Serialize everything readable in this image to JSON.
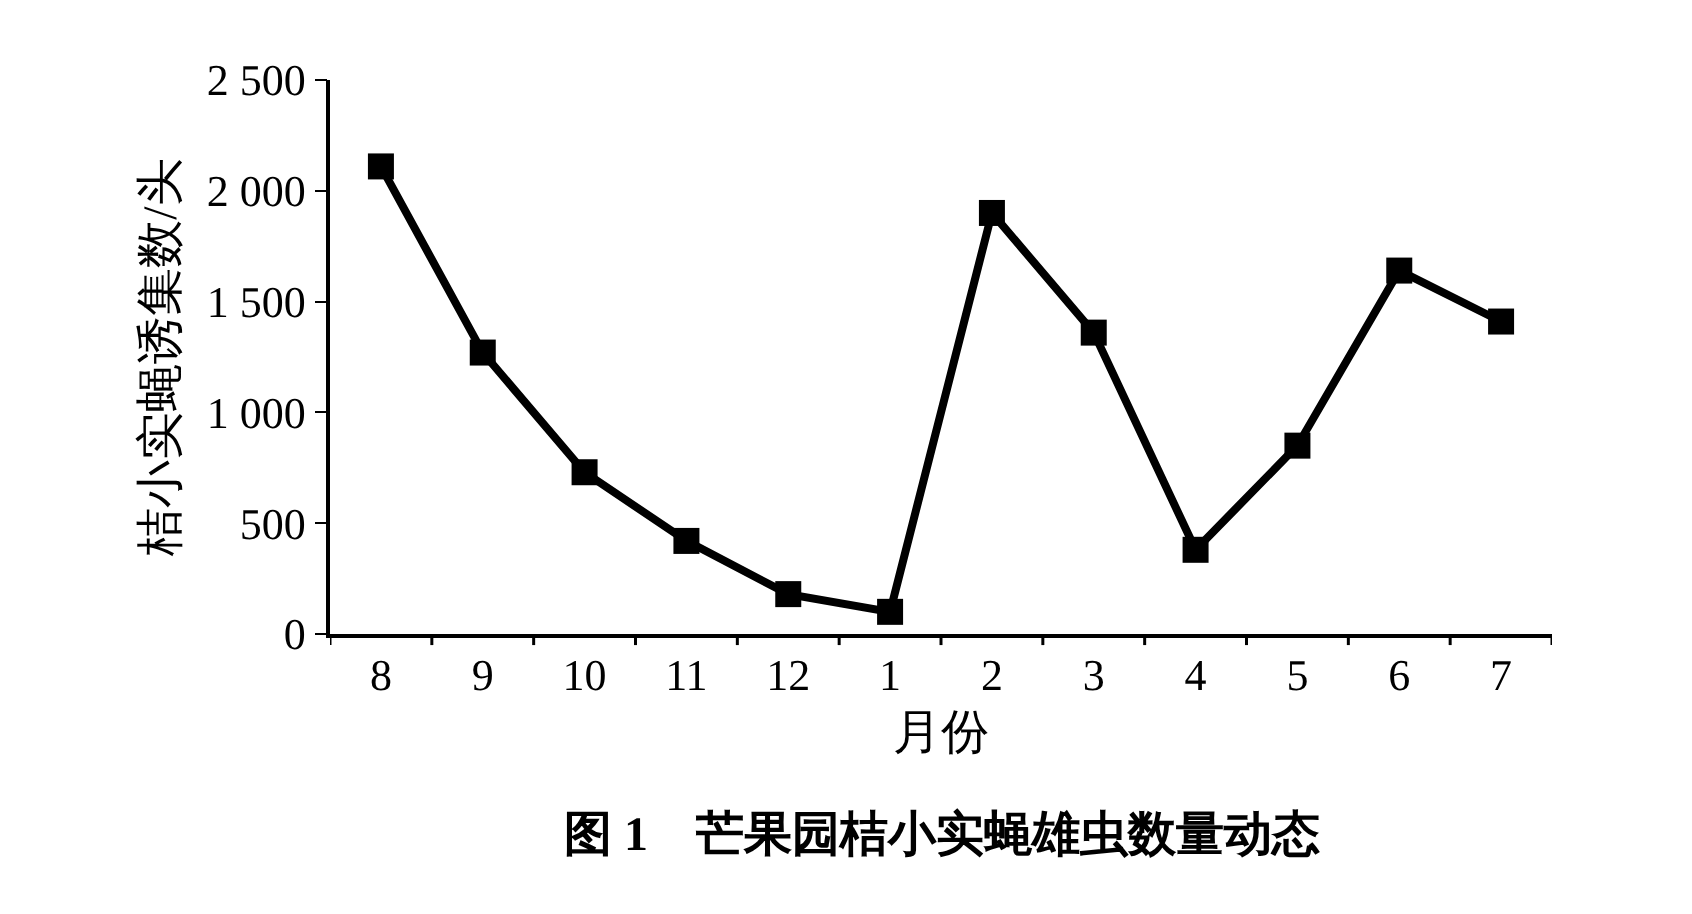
{
  "chart_data": {
    "type": "line",
    "xlabel": "月份",
    "ylabel": "桔小实蝇诱集数/头",
    "categories": [
      "8",
      "9",
      "10",
      "11",
      "12",
      "1",
      "2",
      "3",
      "4",
      "5",
      "6",
      "7"
    ],
    "values": [
      2110,
      1270,
      730,
      420,
      180,
      100,
      1900,
      1360,
      380,
      850,
      1640,
      1410
    ],
    "color": "#000000",
    "marker": "square",
    "line_style": "solid",
    "ylim": [
      0,
      2500
    ],
    "yticks": [
      0,
      500,
      {
        "value": 1000,
        "label": "1 000"
      },
      {
        "value": 1500,
        "label": "1 500"
      },
      {
        "value": 2000,
        "label": "2 000"
      },
      {
        "value": 2500,
        "label": "2 500"
      }
    ],
    "annotations": [
      "图 1　芒果园桔小实蝇雄虫数量动态"
    ]
  }
}
